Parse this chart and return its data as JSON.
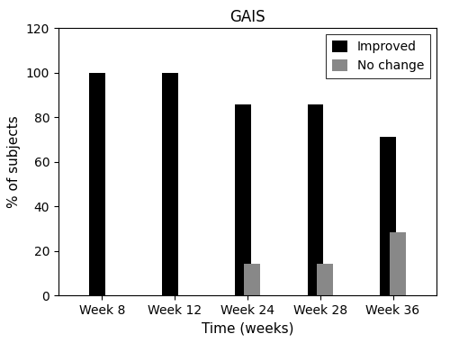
{
  "title": "GAIS",
  "xlabel": "Time (weeks)",
  "ylabel": "% of subjects",
  "categories": [
    "Week 8",
    "Week 12",
    "Week 24",
    "Week 28",
    "Week 36"
  ],
  "improved": [
    100,
    100,
    85.7,
    85.7,
    71.4
  ],
  "no_change": [
    0,
    0,
    14.3,
    14.3,
    28.6
  ],
  "improved_color": "#000000",
  "no_change_color": "#888888",
  "ylim": [
    0,
    120
  ],
  "yticks": [
    0,
    20,
    40,
    60,
    80,
    100,
    120
  ],
  "bar_width": 0.22,
  "legend_labels": [
    "Improved",
    "No change"
  ],
  "background_color": "#ffffff",
  "title_fontsize": 12,
  "axis_fontsize": 11,
  "tick_fontsize": 10
}
